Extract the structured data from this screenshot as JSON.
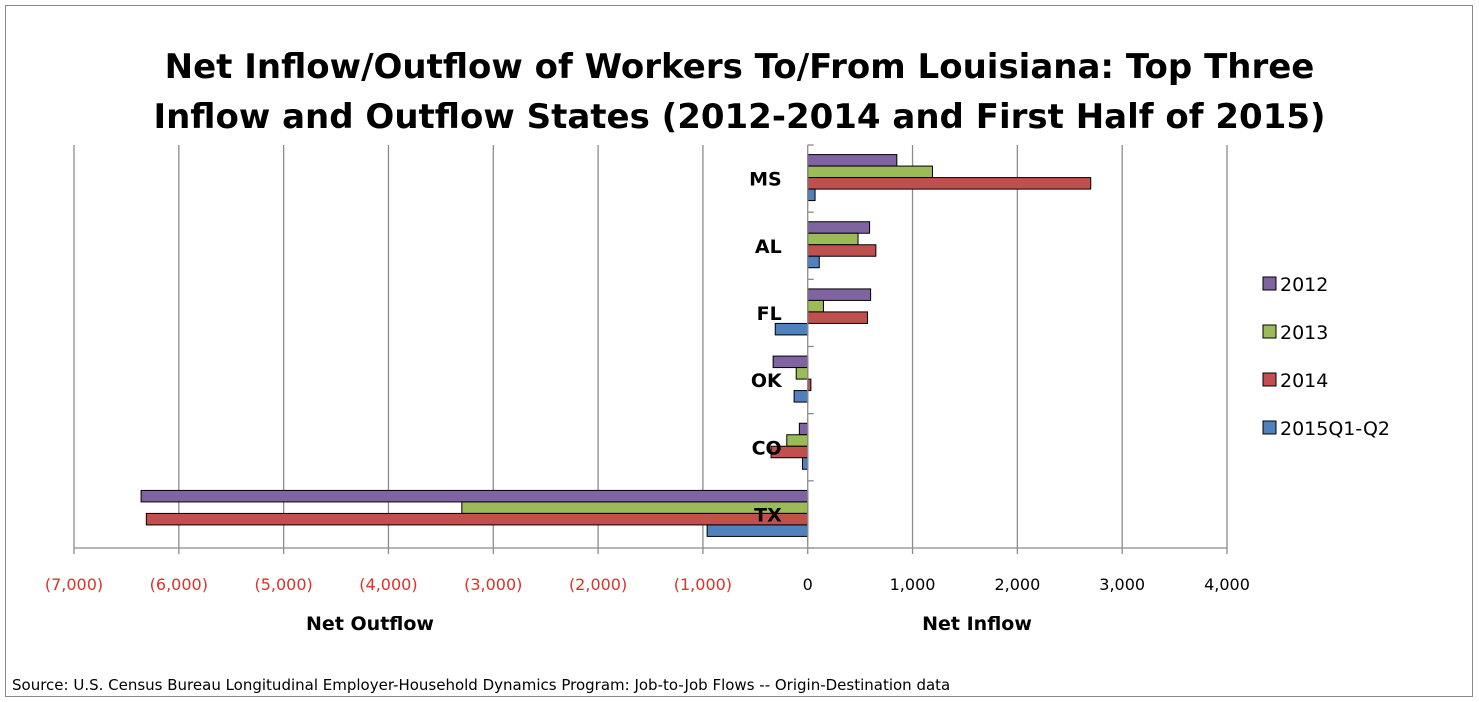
{
  "chart_data": {
    "type": "bar",
    "orientation": "horizontal",
    "title_lines": [
      "Net Inflow/Outflow of Workers To/From Louisiana: Top Three",
      "Inflow and Outflow States (2012-2014 and First Half of 2015)"
    ],
    "categories": [
      "MS",
      "AL",
      "FL",
      "OK",
      "CO",
      "TX"
    ],
    "series": [
      {
        "name": "2012",
        "color": "#8064A2",
        "values": [
          850,
          590,
          600,
          -330,
          -80,
          -6360
        ]
      },
      {
        "name": "2013",
        "color": "#9BBB59",
        "values": [
          1190,
          480,
          150,
          -110,
          -200,
          -3300
        ]
      },
      {
        "name": "2014",
        "color": "#C0504D",
        "values": [
          2700,
          650,
          570,
          30,
          -350,
          -6310
        ]
      },
      {
        "name": "2015Q1-Q2",
        "color": "#4F81BD",
        "values": [
          70,
          110,
          -310,
          -130,
          -50,
          -960
        ]
      }
    ],
    "xlim": [
      -7000,
      4000
    ],
    "x_ticks": [
      {
        "value": -7000,
        "label": "(7,000)"
      },
      {
        "value": -6000,
        "label": "(6,000)"
      },
      {
        "value": -5000,
        "label": "(5,000)"
      },
      {
        "value": -4000,
        "label": "(4,000)"
      },
      {
        "value": -3000,
        "label": "(3,000)"
      },
      {
        "value": -2000,
        "label": "(2,000)"
      },
      {
        "value": -1000,
        "label": "(1,000)"
      },
      {
        "value": 0,
        "label": "0"
      },
      {
        "value": 1000,
        "label": "1,000"
      },
      {
        "value": 2000,
        "label": "2,000"
      },
      {
        "value": 3000,
        "label": "3,000"
      },
      {
        "value": 4000,
        "label": "4,000"
      }
    ],
    "negative_tick_color": "#E0302A",
    "positive_tick_color": "#000000",
    "xlabel_left": "Net Outflow",
    "xlabel_right": "Net Inflow",
    "grid": true,
    "legend_position": "right"
  },
  "source": "Source: U.S. Census Bureau Longitudinal Employer-Household Dynamics Program: Job-to-Job Flows -- Origin-Destination data"
}
